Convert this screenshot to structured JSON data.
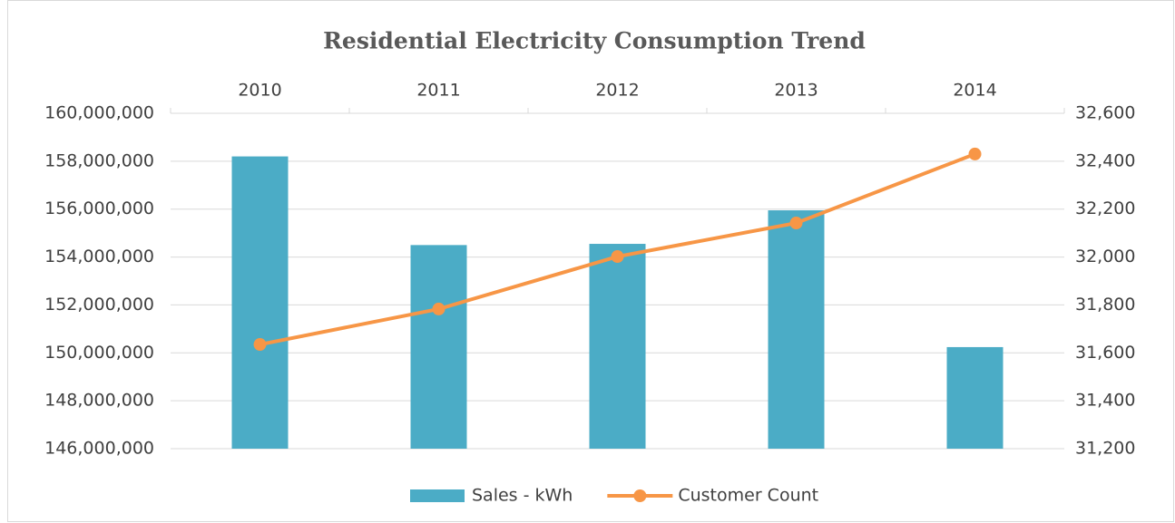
{
  "chart_data": {
    "type": "bar",
    "title": "Residential Electricity Consumption Trend",
    "categories": [
      "2010",
      "2011",
      "2012",
      "2013",
      "2014"
    ],
    "series": [
      {
        "name": "Sales - kWh",
        "type": "bar",
        "axis": "y",
        "color": "#4bacc6",
        "values": [
          158200000,
          154500000,
          154550000,
          155950000,
          150240000
        ]
      },
      {
        "name": "Customer Count",
        "type": "line",
        "axis": "y2",
        "color": "#f79646",
        "values": [
          31635,
          31783,
          32002,
          32142,
          32430
        ]
      }
    ],
    "ylim": [
      146000000,
      160000000
    ],
    "yticks": [
      {
        "value": 146000000,
        "label": "146,000,000"
      },
      {
        "value": 148000000,
        "label": "148,000,000"
      },
      {
        "value": 150000000,
        "label": "150,000,000"
      },
      {
        "value": 152000000,
        "label": "152,000,000"
      },
      {
        "value": 154000000,
        "label": "154,000,000"
      },
      {
        "value": 156000000,
        "label": "156,000,000"
      },
      {
        "value": 158000000,
        "label": "158,000,000"
      },
      {
        "value": 160000000,
        "label": "160,000,000"
      }
    ],
    "y2lim": [
      31200,
      32600
    ],
    "y2ticks": [
      {
        "value": 31200,
        "label": "31,200"
      },
      {
        "value": 31400,
        "label": "31,400"
      },
      {
        "value": 31600,
        "label": "31,600"
      },
      {
        "value": 31800,
        "label": "31,800"
      },
      {
        "value": 32000,
        "label": "32,000"
      },
      {
        "value": 32200,
        "label": "32,200"
      },
      {
        "value": 32400,
        "label": "32,400"
      },
      {
        "value": 32600,
        "label": "32,600"
      }
    ],
    "grid": true,
    "legend": "bottom"
  }
}
